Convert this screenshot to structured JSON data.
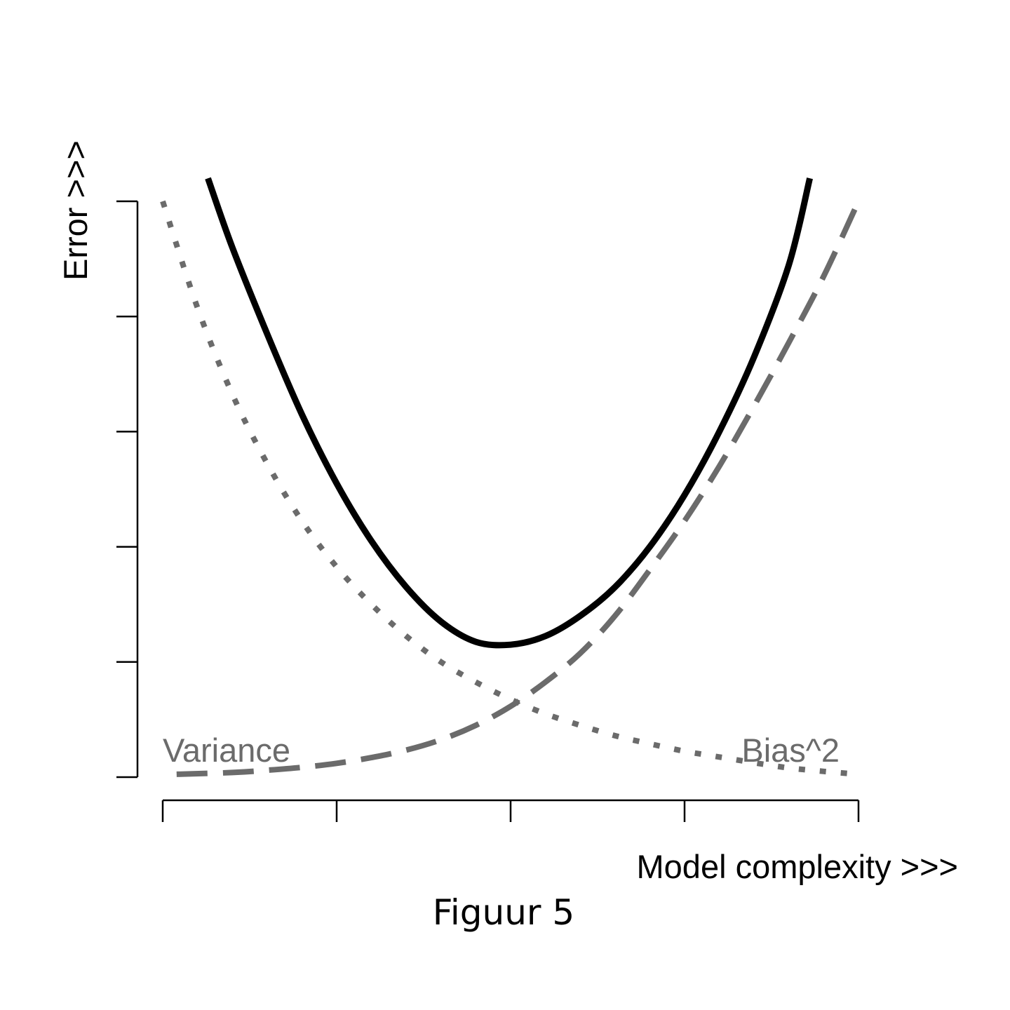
{
  "chart_data": {
    "type": "line",
    "xlabel": "Model complexity >>>",
    "ylabel": "Error >>>",
    "caption": "Figuur 5",
    "xlim": [
      0,
      1
    ],
    "ylim": [
      0,
      1
    ],
    "xticks": [
      0,
      0.25,
      0.5,
      0.75,
      1.0
    ],
    "yticks": [
      0,
      0.2,
      0.4,
      0.6,
      0.8,
      1.0
    ],
    "grid": false,
    "series": [
      {
        "name": "",
        "style": "solid",
        "color": "#000000",
        "x": [
          0.065,
          0.1,
          0.15,
          0.2,
          0.25,
          0.3,
          0.35,
          0.4,
          0.45,
          0.5,
          0.55,
          0.6,
          0.65,
          0.7,
          0.75,
          0.8,
          0.85,
          0.9,
          0.93
        ],
        "y": [
          1.04,
          0.92,
          0.77,
          0.63,
          0.51,
          0.41,
          0.33,
          0.27,
          0.235,
          0.23,
          0.245,
          0.28,
          0.33,
          0.4,
          0.49,
          0.6,
          0.73,
          0.89,
          1.04
        ]
      },
      {
        "name": "Variance",
        "style": "dotted",
        "color": "#6b6b6b",
        "x": [
          0.0,
          0.05,
          0.1,
          0.15,
          0.2,
          0.25,
          0.3,
          0.35,
          0.4,
          0.45,
          0.5,
          0.55,
          0.6,
          0.65,
          0.7,
          0.75,
          0.8,
          0.85,
          0.9,
          0.95,
          1.0
        ],
        "y": [
          1.0,
          0.815,
          0.665,
          0.545,
          0.445,
          0.365,
          0.3,
          0.245,
          0.2,
          0.165,
          0.135,
          0.11,
          0.09,
          0.072,
          0.058,
          0.045,
          0.035,
          0.025,
          0.016,
          0.01,
          0.005
        ]
      },
      {
        "name": "Bias^2",
        "style": "dashed",
        "color": "#6b6b6b",
        "x": [
          0.02,
          0.1,
          0.15,
          0.2,
          0.25,
          0.3,
          0.35,
          0.4,
          0.45,
          0.5,
          0.55,
          0.6,
          0.65,
          0.7,
          0.75,
          0.8,
          0.85,
          0.9,
          0.95,
          1.0
        ],
        "y": [
          0.005,
          0.008,
          0.012,
          0.017,
          0.024,
          0.034,
          0.047,
          0.065,
          0.09,
          0.123,
          0.165,
          0.215,
          0.28,
          0.36,
          0.445,
          0.54,
          0.645,
          0.755,
          0.87,
          1.0
        ]
      }
    ],
    "annotations": [
      {
        "text": "Variance",
        "x": 0.0,
        "y": 0.02
      },
      {
        "text": "Bias^2",
        "x": 0.82,
        "y": 0.02
      }
    ]
  }
}
